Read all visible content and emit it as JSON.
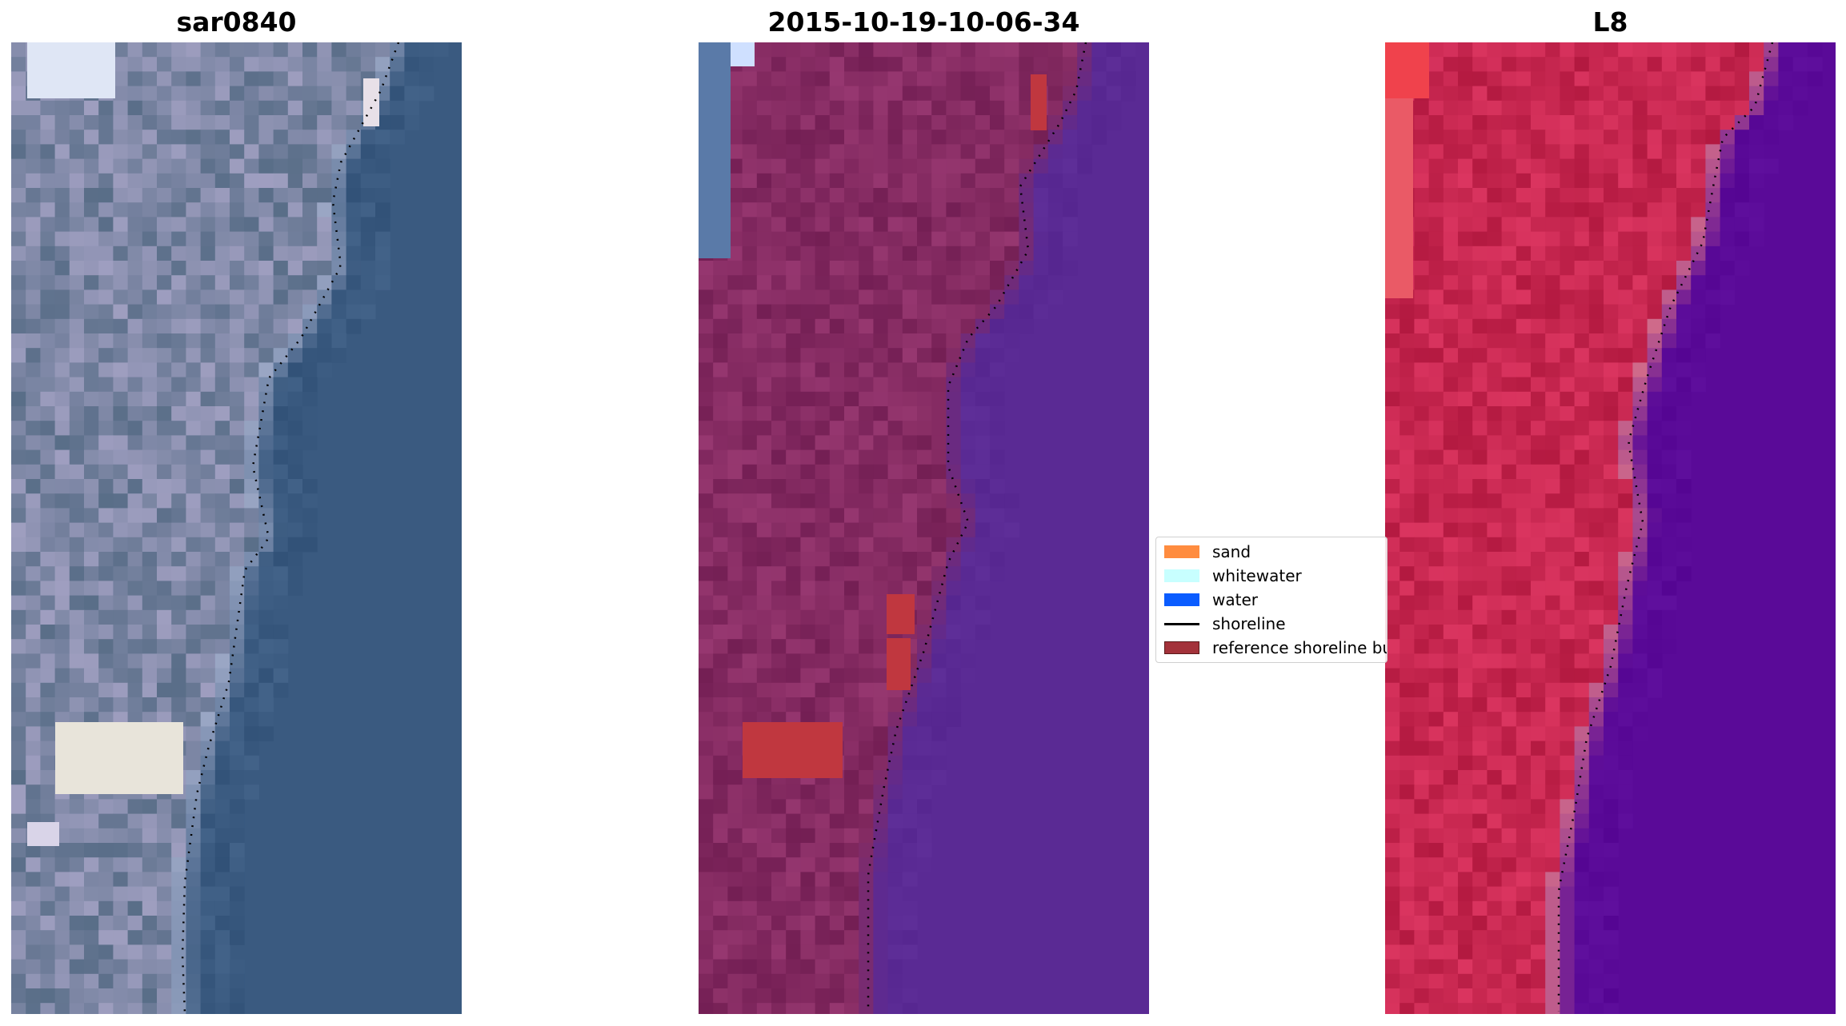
{
  "panels": [
    {
      "title": "sar0840",
      "style": "rgb"
    },
    {
      "title": "2015-10-19-10-06-34",
      "style": "classified"
    },
    {
      "title": "L8",
      "style": "falsecolor"
    }
  ],
  "legend": {
    "items": [
      {
        "label": "sand",
        "kind": "patch",
        "color": "#ff8c3f"
      },
      {
        "label": "whitewater",
        "kind": "patch",
        "color": "#c8ffff"
      },
      {
        "label": "water",
        "kind": "patch",
        "color": "#0a5cff"
      },
      {
        "label": "shoreline",
        "kind": "line",
        "color": "#000000"
      },
      {
        "label": "reference shoreline buffer",
        "kind": "patch",
        "color": "#a3323a",
        "border": "#5a1a1a"
      }
    ]
  },
  "colors": {
    "rgb_sea": "#3a5a80",
    "rgb_land": "#7c86a4",
    "classified_sea": "#5a2a94",
    "classified_land": "#852b62",
    "classified_buffer": "#c0373f",
    "falsecolor_sea": "#5a0a98",
    "falsecolor_land": "#c72750",
    "falsecolor_edge": "#cf6a8a"
  }
}
